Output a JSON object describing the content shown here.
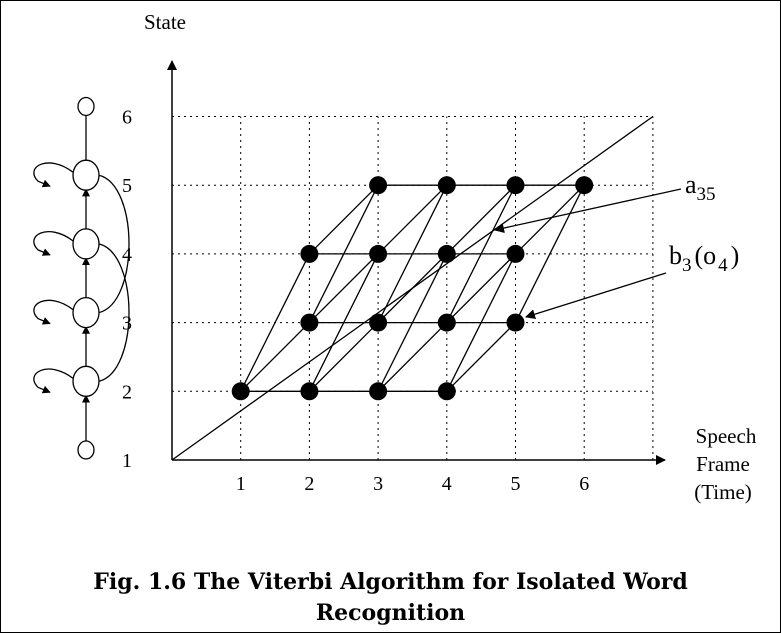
{
  "axes": {
    "y_title": "State",
    "x_title_lines": [
      "Speech",
      "Frame",
      "(Time)"
    ],
    "x_ticks": [
      "1",
      "2",
      "3",
      "4",
      "5",
      "6"
    ],
    "y_ticks": [
      "1",
      "2",
      "3",
      "4",
      "5",
      "6"
    ]
  },
  "annotations": {
    "a": {
      "base": "a",
      "sub": "35"
    },
    "b": {
      "base": "b",
      "sub1": "3",
      "open": "(o",
      "sub2": "4",
      "close": ")"
    }
  },
  "trellis": {
    "nodes": [
      [
        1,
        2
      ],
      [
        2,
        2
      ],
      [
        2,
        3
      ],
      [
        2,
        4
      ],
      [
        3,
        2
      ],
      [
        3,
        3
      ],
      [
        3,
        4
      ],
      [
        3,
        5
      ],
      [
        4,
        2
      ],
      [
        4,
        3
      ],
      [
        4,
        4
      ],
      [
        4,
        5
      ],
      [
        5,
        3
      ],
      [
        5,
        4
      ],
      [
        5,
        5
      ],
      [
        6,
        5
      ]
    ],
    "transitions": [
      [
        [
          1,
          2
        ],
        [
          2,
          2
        ]
      ],
      [
        [
          1,
          2
        ],
        [
          2,
          3
        ]
      ],
      [
        [
          1,
          2
        ],
        [
          2,
          4
        ]
      ],
      [
        [
          2,
          2
        ],
        [
          3,
          2
        ]
      ],
      [
        [
          2,
          2
        ],
        [
          3,
          3
        ]
      ],
      [
        [
          2,
          2
        ],
        [
          3,
          4
        ]
      ],
      [
        [
          2,
          3
        ],
        [
          3,
          3
        ]
      ],
      [
        [
          2,
          3
        ],
        [
          3,
          4
        ]
      ],
      [
        [
          2,
          3
        ],
        [
          3,
          5
        ]
      ],
      [
        [
          2,
          4
        ],
        [
          3,
          4
        ]
      ],
      [
        [
          2,
          4
        ],
        [
          3,
          5
        ]
      ],
      [
        [
          3,
          2
        ],
        [
          4,
          2
        ]
      ],
      [
        [
          3,
          2
        ],
        [
          4,
          3
        ]
      ],
      [
        [
          3,
          2
        ],
        [
          4,
          4
        ]
      ],
      [
        [
          3,
          3
        ],
        [
          4,
          3
        ]
      ],
      [
        [
          3,
          3
        ],
        [
          4,
          4
        ]
      ],
      [
        [
          3,
          3
        ],
        [
          4,
          5
        ]
      ],
      [
        [
          3,
          4
        ],
        [
          4,
          4
        ]
      ],
      [
        [
          3,
          4
        ],
        [
          4,
          5
        ]
      ],
      [
        [
          3,
          5
        ],
        [
          4,
          5
        ]
      ],
      [
        [
          4,
          2
        ],
        [
          5,
          3
        ]
      ],
      [
        [
          4,
          2
        ],
        [
          5,
          4
        ]
      ],
      [
        [
          4,
          3
        ],
        [
          5,
          3
        ]
      ],
      [
        [
          4,
          3
        ],
        [
          5,
          4
        ]
      ],
      [
        [
          4,
          3
        ],
        [
          5,
          5
        ]
      ],
      [
        [
          4,
          4
        ],
        [
          5,
          4
        ]
      ],
      [
        [
          4,
          4
        ],
        [
          5,
          5
        ]
      ],
      [
        [
          4,
          5
        ],
        [
          5,
          5
        ]
      ],
      [
        [
          5,
          3
        ],
        [
          6,
          5
        ]
      ],
      [
        [
          5,
          4
        ],
        [
          6,
          5
        ]
      ],
      [
        [
          5,
          5
        ],
        [
          6,
          5
        ]
      ]
    ]
  },
  "hmm": {
    "states": [
      "1",
      "2",
      "3",
      "4",
      "5",
      "6"
    ],
    "self_loop_states": [
      "2",
      "3",
      "4",
      "5"
    ],
    "skip_arcs": [
      [
        "2",
        "4"
      ],
      [
        "3",
        "5"
      ]
    ]
  },
  "caption": {
    "line1": "Fig. 1.6  The Viterbi Algorithm for Isolated Word",
    "line2": "Recognition"
  }
}
